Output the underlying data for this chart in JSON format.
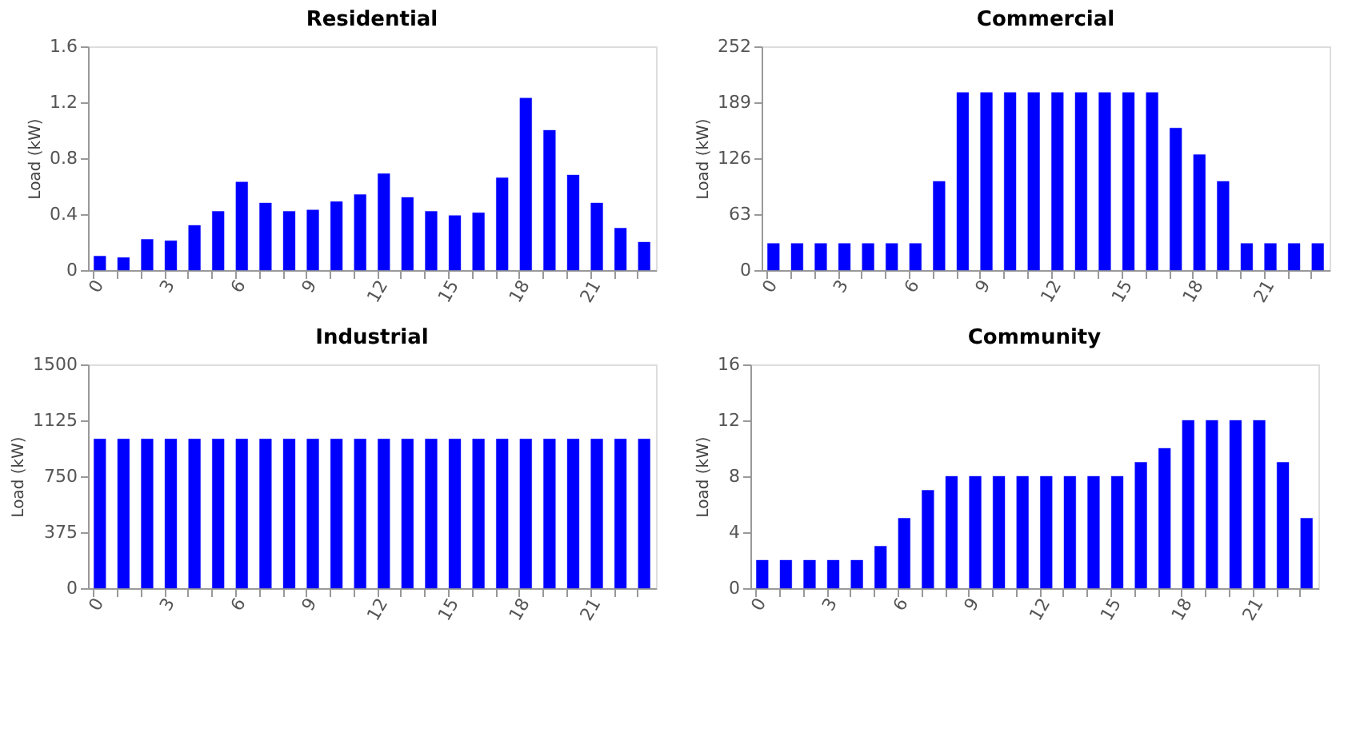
{
  "chart_data": [
    {
      "type": "bar",
      "title": "Residential",
      "ylabel": "Load (kW)",
      "categories": [
        "0",
        null,
        null,
        "3",
        null,
        null,
        "6",
        null,
        null,
        "9",
        null,
        null,
        "12",
        null,
        null,
        "15",
        null,
        null,
        "18",
        null,
        null,
        "21",
        null,
        null
      ],
      "values": [
        0.1,
        0.09,
        0.22,
        0.21,
        0.32,
        0.42,
        0.63,
        0.48,
        0.42,
        0.43,
        0.49,
        0.54,
        0.69,
        0.52,
        0.42,
        0.39,
        0.41,
        0.66,
        1.23,
        1.0,
        0.68,
        0.48,
        0.3,
        0.2
      ],
      "color": "#0000ff",
      "ylim": [
        0,
        1.6
      ],
      "yticks": [
        0,
        0.4,
        0.8,
        1.2,
        1.6
      ],
      "grid": false
    },
    {
      "type": "bar",
      "title": "Commercial",
      "ylabel": "Load (kW)",
      "categories": [
        "0",
        null,
        null,
        "3",
        null,
        null,
        "6",
        null,
        null,
        "9",
        null,
        null,
        "12",
        null,
        null,
        "15",
        null,
        null,
        "18",
        null,
        null,
        "21",
        null,
        null
      ],
      "values": [
        30,
        30,
        30,
        30,
        30,
        30,
        30,
        100,
        200,
        200,
        200,
        200,
        200,
        200,
        200,
        200,
        200,
        160,
        130,
        100,
        30,
        30,
        30,
        30
      ],
      "color": "#0000ff",
      "ylim": [
        0,
        252
      ],
      "yticks": [
        0,
        63,
        126,
        189,
        252
      ],
      "grid": false
    },
    {
      "type": "bar",
      "title": "Industrial",
      "ylabel": "Load (kW)",
      "categories": [
        "0",
        null,
        null,
        "3",
        null,
        null,
        "6",
        null,
        null,
        "9",
        null,
        null,
        "12",
        null,
        null,
        "15",
        null,
        null,
        "18",
        null,
        null,
        "21",
        null,
        null
      ],
      "values": [
        1000,
        1000,
        1000,
        1000,
        1000,
        1000,
        1000,
        1000,
        1000,
        1000,
        1000,
        1000,
        1000,
        1000,
        1000,
        1000,
        1000,
        1000,
        1000,
        1000,
        1000,
        1000,
        1000,
        1000
      ],
      "color": "#0000ff",
      "ylim": [
        0,
        1500
      ],
      "yticks": [
        0,
        375,
        750,
        1125,
        1500
      ],
      "grid": false
    },
    {
      "type": "bar",
      "title": "Community",
      "ylabel": "Load (kW)",
      "categories": [
        "0",
        null,
        null,
        "3",
        null,
        null,
        "6",
        null,
        null,
        "9",
        null,
        null,
        "12",
        null,
        null,
        "15",
        null,
        null,
        "18",
        null,
        null,
        "21",
        null,
        null
      ],
      "values": [
        2,
        2,
        2,
        2,
        2,
        3,
        5,
        7,
        8,
        8,
        8,
        8,
        8,
        8,
        8,
        8,
        9,
        10,
        12,
        12,
        12,
        12,
        9,
        5
      ],
      "color": "#0000ff",
      "ylim": [
        0,
        16
      ],
      "yticks": [
        0,
        4,
        8,
        12,
        16
      ],
      "grid": false
    }
  ]
}
